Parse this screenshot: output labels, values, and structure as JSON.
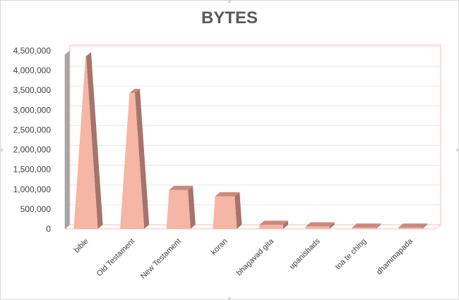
{
  "chart_data": {
    "type": "bar",
    "title": "BYTES",
    "xlabel": "",
    "ylabel": "",
    "categories": [
      "bible",
      "Old Testament",
      "New Testament",
      "koran",
      "bhagavad gita",
      "upanishads",
      "toa te ching",
      "dhammapada"
    ],
    "values": [
      4350000,
      3430000,
      980000,
      820000,
      100000,
      60000,
      30000,
      30000
    ],
    "ylim": [
      0,
      4500000
    ],
    "yticks": [
      0,
      500000,
      1000000,
      1500000,
      2000000,
      2500000,
      3000000,
      3500000,
      4000000,
      4500000
    ],
    "ytick_labels": [
      "0",
      "500,000",
      "1,000,000",
      "1,500,000",
      "2,000,000",
      "2,500,000",
      "3,000,000",
      "3,500,000",
      "4,000,000",
      "4,500,000"
    ],
    "shape": "3d-pyramid-truncated",
    "grid": true,
    "legend": "none",
    "colors": {
      "bar_front": "#f5b6a6",
      "bar_side": "#a8736a",
      "bar_top": "#c98a7e",
      "gridline": "#e7e7e7",
      "wall": "#f0c2b8",
      "left_wall": "#a6a6a6",
      "title": "#595959",
      "text": "#404040"
    }
  }
}
